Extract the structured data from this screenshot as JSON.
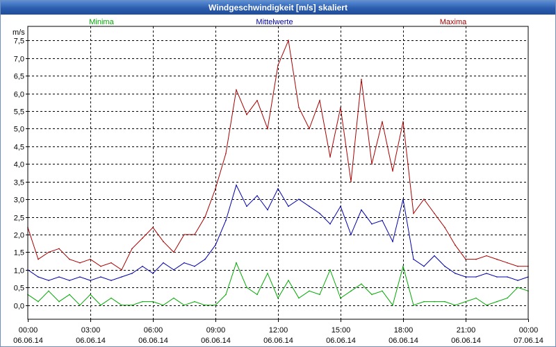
{
  "window": {
    "title": "Windgeschwindigkeit [m/s] skaliert"
  },
  "chart_data": {
    "type": "line",
    "title": "Windgeschwindigkeit [m/s] skaliert",
    "ylabel": "m/s",
    "xlabel": "",
    "ylim": [
      -0.4,
      7.9
    ],
    "xlim": [
      0,
      24
    ],
    "grid": true,
    "legend_placement": "top",
    "y_ticks": [
      0.0,
      0.5,
      1.0,
      1.5,
      2.0,
      2.5,
      3.0,
      3.5,
      4.0,
      4.5,
      5.0,
      5.5,
      6.0,
      6.5,
      7.0,
      7.5
    ],
    "y_tick_labels": [
      "0,0",
      "0,5",
      "1,0",
      "1,5",
      "2,0",
      "2,5",
      "3,0",
      "3,5",
      "4,0",
      "4,5",
      "5,0",
      "5,5",
      "6,0",
      "6,5",
      "7,0",
      "7,5"
    ],
    "x_ticks": [
      0,
      3,
      6,
      9,
      12,
      15,
      18,
      21,
      24
    ],
    "x_tick_times": [
      "00:00",
      "03:00",
      "06:00",
      "09:00",
      "12:00",
      "15:00",
      "18:00",
      "21:00",
      "00:00"
    ],
    "x_tick_dates": [
      "06.06.14",
      "06.06.14",
      "06.06.14",
      "06.06.14",
      "06.06.14",
      "06.06.14",
      "06.06.14",
      "06.06.14",
      "07.06.14"
    ],
    "series": [
      {
        "name": "Minima",
        "color": "#00aa00",
        "x": [
          0.0,
          0.5,
          1.0,
          1.5,
          2.0,
          2.5,
          3.0,
          3.5,
          4.0,
          4.5,
          5.0,
          5.5,
          6.0,
          6.5,
          7.0,
          7.5,
          8.0,
          8.5,
          9.0,
          9.5,
          10.0,
          10.5,
          11.0,
          11.5,
          12.0,
          12.5,
          13.0,
          13.5,
          14.0,
          14.5,
          15.0,
          15.5,
          16.0,
          16.5,
          17.0,
          17.5,
          18.0,
          18.5,
          19.0,
          19.5,
          20.0,
          20.5,
          21.0,
          21.5,
          22.0,
          22.5,
          23.0,
          23.5,
          24.0
        ],
        "values": [
          0.3,
          0.1,
          0.4,
          0.1,
          0.3,
          0.0,
          0.3,
          0.0,
          0.2,
          0.0,
          0.0,
          0.1,
          0.1,
          0.0,
          0.2,
          0.0,
          0.1,
          0.0,
          0.0,
          0.3,
          1.2,
          0.5,
          0.3,
          0.9,
          0.2,
          0.7,
          0.2,
          0.4,
          0.3,
          1.0,
          0.2,
          0.4,
          0.6,
          0.3,
          0.4,
          0.0,
          1.1,
          0.0,
          0.1,
          0.1,
          0.1,
          0.0,
          0.1,
          0.2,
          0.0,
          0.1,
          0.2,
          0.5,
          0.4
        ]
      },
      {
        "name": "Mittelwerte",
        "color": "#0000aa",
        "x": [
          0.0,
          0.5,
          1.0,
          1.5,
          2.0,
          2.5,
          3.0,
          3.5,
          4.0,
          4.5,
          5.0,
          5.5,
          6.0,
          6.5,
          7.0,
          7.5,
          8.0,
          8.5,
          9.0,
          9.5,
          10.0,
          10.5,
          11.0,
          11.5,
          12.0,
          12.5,
          13.0,
          13.5,
          14.0,
          14.5,
          15.0,
          15.5,
          16.0,
          16.5,
          17.0,
          17.5,
          18.0,
          18.5,
          19.0,
          19.5,
          20.0,
          20.5,
          21.0,
          21.5,
          22.0,
          22.5,
          23.0,
          23.5,
          24.0
        ],
        "values": [
          1.0,
          0.8,
          0.7,
          0.8,
          0.7,
          0.8,
          0.7,
          0.8,
          0.7,
          0.8,
          0.9,
          1.1,
          0.9,
          1.2,
          1.0,
          1.2,
          1.1,
          1.3,
          1.7,
          2.4,
          3.4,
          2.8,
          3.1,
          2.7,
          3.3,
          2.8,
          3.0,
          2.8,
          2.6,
          2.3,
          2.8,
          2.0,
          2.7,
          2.3,
          2.4,
          1.8,
          3.0,
          1.3,
          1.1,
          1.4,
          1.1,
          0.9,
          0.8,
          0.8,
          0.9,
          0.8,
          0.8,
          0.7,
          0.8
        ]
      },
      {
        "name": "Maxima",
        "color": "#aa0000",
        "x": [
          0.0,
          0.5,
          1.0,
          1.5,
          2.0,
          2.5,
          3.0,
          3.5,
          4.0,
          4.5,
          5.0,
          5.5,
          6.0,
          6.5,
          7.0,
          7.5,
          8.0,
          8.5,
          9.0,
          9.5,
          10.0,
          10.5,
          11.0,
          11.5,
          12.0,
          12.5,
          13.0,
          13.5,
          14.0,
          14.5,
          15.0,
          15.5,
          16.0,
          16.5,
          17.0,
          17.5,
          18.0,
          18.5,
          19.0,
          19.5,
          20.0,
          20.5,
          21.0,
          21.5,
          22.0,
          22.5,
          23.0,
          23.5,
          24.0
        ],
        "values": [
          2.2,
          1.3,
          1.5,
          1.6,
          1.3,
          1.2,
          1.3,
          1.1,
          1.2,
          1.0,
          1.6,
          1.9,
          2.2,
          1.8,
          1.5,
          2.0,
          2.0,
          2.5,
          3.3,
          4.3,
          6.1,
          5.4,
          5.8,
          5.0,
          6.8,
          7.5,
          5.6,
          5.0,
          5.8,
          4.2,
          5.6,
          3.5,
          6.4,
          4.0,
          5.2,
          3.8,
          5.2,
          2.6,
          3.0,
          2.6,
          2.2,
          1.7,
          1.3,
          1.3,
          1.4,
          1.3,
          1.2,
          1.1,
          1.1
        ]
      }
    ]
  }
}
